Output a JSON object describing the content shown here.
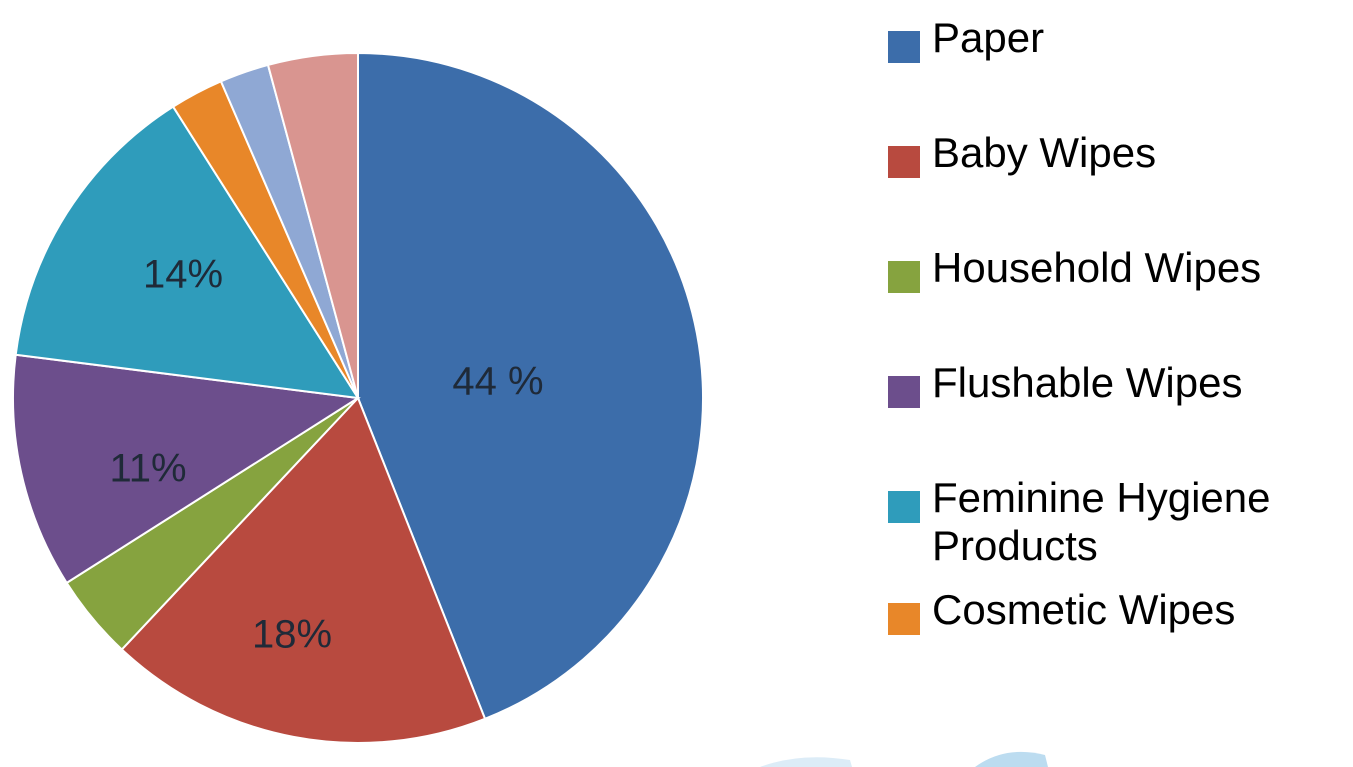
{
  "chart_data": {
    "type": "pie",
    "start_angle_deg": 0,
    "direction": "clockwise",
    "slices": [
      {
        "name": "Paper",
        "value": 44,
        "color": "#3c6daa",
        "label": "44 %"
      },
      {
        "name": "Baby Wipes",
        "value": 18,
        "color": "#b84a3f",
        "label": "18%"
      },
      {
        "name": "Household Wipes",
        "value": 4,
        "color": "#86a33f",
        "label": ""
      },
      {
        "name": "Flushable Wipes",
        "value": 11,
        "color": "#6c4e8c",
        "label": "11%"
      },
      {
        "name": "Feminine Hygiene Products",
        "value": 14,
        "color": "#2f9cbb",
        "label": "14%"
      },
      {
        "name": "Cosmetic Wipes",
        "value": 2.5,
        "color": "#e88729",
        "label": ""
      },
      {
        "name": "",
        "value": 2.3,
        "color": "#8fa8d4",
        "label": ""
      },
      {
        "name": "",
        "value": 4.2,
        "color": "#d99590",
        "label": ""
      }
    ],
    "legend": {
      "position": "right",
      "entries": [
        {
          "label": "Paper",
          "color": "#3c6daa"
        },
        {
          "label": "Baby Wipes",
          "color": "#b84a3f"
        },
        {
          "label": "Household Wipes",
          "color": "#86a33f"
        },
        {
          "label": "Flushable Wipes",
          "color": "#6c4e8c"
        },
        {
          "label": "Feminine Hygiene Products",
          "color": "#2f9cbb"
        },
        {
          "label": "Cosmetic Wipes",
          "color": "#e88729"
        }
      ]
    }
  }
}
